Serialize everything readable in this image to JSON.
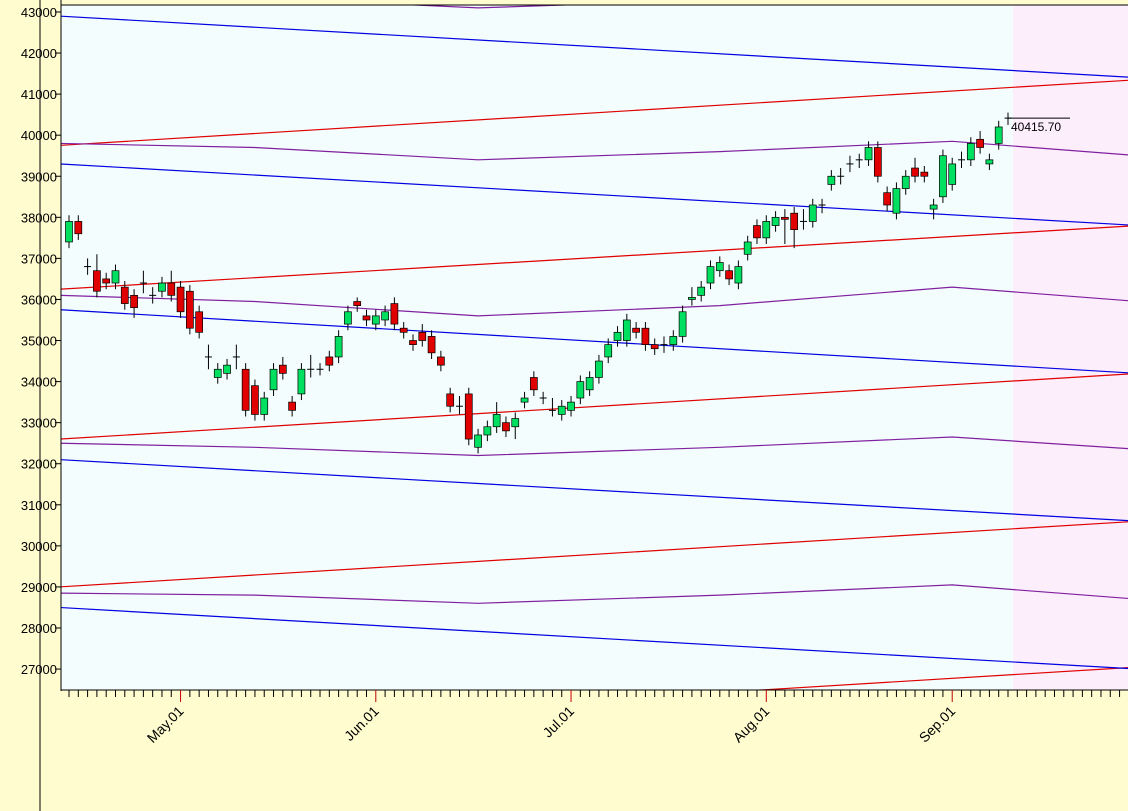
{
  "chart_data": {
    "type": "candlestick",
    "categories": [
      null,
      null,
      null,
      null,
      null,
      null,
      null,
      null,
      null,
      null,
      null,
      null,
      "May.01",
      null,
      null,
      null,
      null,
      null,
      null,
      null,
      null,
      null,
      null,
      null,
      null,
      null,
      null,
      null,
      null,
      null,
      null,
      null,
      null,
      "Jun.01",
      null,
      null,
      null,
      null,
      null,
      null,
      null,
      null,
      null,
      null,
      null,
      null,
      null,
      null,
      null,
      null,
      null,
      null,
      null,
      null,
      "Jul.01",
      null,
      null,
      null,
      null,
      null,
      null,
      null,
      null,
      null,
      null,
      null,
      null,
      null,
      null,
      null,
      null,
      null,
      null,
      null,
      null,
      "Aug.01",
      null,
      null,
      null,
      null,
      null,
      null,
      null,
      null,
      null,
      null,
      null,
      null,
      null,
      null,
      null,
      null,
      null,
      null,
      null,
      "Sep.01",
      null,
      null,
      null,
      null,
      null,
      null
    ],
    "open": [
      37400,
      37900,
      36800,
      36700,
      36500,
      36400,
      36300,
      36100,
      36400,
      36100,
      36200,
      36400,
      36300,
      36200,
      35700,
      34600,
      34100,
      34200,
      34600,
      34300,
      33900,
      33200,
      33800,
      34400,
      33500,
      33700,
      34300,
      34300,
      34600,
      34600,
      35400,
      35950,
      35600,
      35400,
      35500,
      35900,
      35300,
      35000,
      35200,
      35100,
      34600,
      33700,
      33400,
      33700,
      32400,
      32700,
      32900,
      33000,
      32900,
      33500,
      34100,
      33600,
      33300,
      33200,
      33300,
      33600,
      33800,
      34100,
      34600,
      35000,
      35000,
      35300,
      35300,
      34900,
      34900,
      34900,
      35100,
      36000,
      36100,
      36400,
      36700,
      36700,
      36400,
      37100,
      37800,
      37500,
      37800,
      38000,
      38100,
      37900,
      37900,
      38300,
      38800,
      39000,
      39300,
      39400,
      39400,
      39700,
      38600,
      38100,
      38700,
      39200,
      39100,
      38200,
      38500,
      38800,
      39400,
      39400,
      39900,
      39300,
      39800,
      40415.7
    ],
    "high": [
      38050,
      38050,
      37000,
      37100,
      36650,
      36850,
      36450,
      36250,
      36700,
      36300,
      36550,
      36700,
      36450,
      36350,
      35850,
      34900,
      34450,
      34550,
      34900,
      34450,
      34050,
      33750,
      34450,
      34600,
      33650,
      34450,
      34650,
      34450,
      34750,
      35250,
      35850,
      36050,
      35750,
      35750,
      35850,
      36050,
      35450,
      35150,
      35400,
      35250,
      34750,
      33850,
      33650,
      33850,
      32850,
      33050,
      33500,
      33150,
      33250,
      33750,
      34250,
      33750,
      33600,
      33550,
      33650,
      34150,
      34250,
      34650,
      35050,
      35350,
      35650,
      35450,
      35450,
      35050,
      35100,
      35250,
      35850,
      36300,
      36450,
      36950,
      37050,
      36850,
      36950,
      37550,
      37950,
      38050,
      38150,
      38200,
      38250,
      38200,
      38450,
      38450,
      39150,
      39200,
      39500,
      39550,
      39850,
      39850,
      38750,
      38850,
      39150,
      39450,
      39250,
      38450,
      39650,
      39450,
      39600,
      39950,
      40100,
      39550,
      40350,
      40550
    ],
    "low": [
      37250,
      37450,
      36600,
      36050,
      36250,
      36250,
      35750,
      35550,
      36150,
      35900,
      36050,
      35950,
      35550,
      35150,
      35050,
      34300,
      33950,
      34050,
      34300,
      33150,
      33050,
      33050,
      33650,
      34050,
      33150,
      33550,
      34100,
      34150,
      34250,
      34450,
      35250,
      35700,
      35350,
      35250,
      35350,
      35250,
      35050,
      34750,
      34850,
      34550,
      34250,
      33250,
      33200,
      32450,
      32250,
      32550,
      32750,
      32650,
      32600,
      33350,
      33650,
      33450,
      33150,
      33050,
      33150,
      33450,
      33650,
      33950,
      34450,
      34850,
      34850,
      35050,
      34750,
      34650,
      34700,
      34750,
      34950,
      35850,
      35950,
      36250,
      36550,
      36350,
      36250,
      36950,
      37350,
      37350,
      37650,
      37350,
      37250,
      37700,
      37750,
      38100,
      38650,
      38800,
      39100,
      39200,
      39250,
      38850,
      38150,
      37950,
      38550,
      38850,
      38850,
      37950,
      38350,
      38650,
      39200,
      39250,
      39550,
      39150,
      39650,
      40250
    ],
    "close": [
      37900,
      37600,
      36800,
      36200,
      36400,
      36700,
      35900,
      35800,
      36400,
      36100,
      36400,
      36100,
      35700,
      35300,
      35200,
      34600,
      34300,
      34400,
      34600,
      33300,
      33200,
      33600,
      34300,
      34200,
      33300,
      34300,
      34300,
      34300,
      34400,
      35100,
      35700,
      35850,
      35500,
      35600,
      35700,
      35400,
      35200,
      34900,
      35000,
      34700,
      34400,
      33400,
      33400,
      32600,
      32700,
      32900,
      33200,
      32800,
      33100,
      33600,
      33800,
      33600,
      33300,
      33400,
      33500,
      34000,
      34100,
      34500,
      34900,
      35200,
      35500,
      35200,
      34900,
      34800,
      34900,
      35100,
      35700,
      36050,
      36300,
      36800,
      36900,
      36500,
      36800,
      37400,
      37500,
      37900,
      38000,
      37950,
      37700,
      37900,
      38300,
      38300,
      39000,
      39000,
      39300,
      39400,
      39700,
      39000,
      38300,
      38700,
      39000,
      39000,
      39000,
      38300,
      39500,
      39300,
      39400,
      39800,
      39700,
      39400,
      40200,
      40415.7
    ],
    "up_color": "#00e060",
    "down_color": "#e00000",
    "last_price": {
      "value": 40415.7,
      "label": "40415.70"
    },
    "overlays": [
      {
        "color": "#e00000",
        "x": [
          -1,
          115
        ],
        "values": [
          39750,
          41350
        ]
      },
      {
        "color": "#e00000",
        "x": [
          -1,
          115
        ],
        "values": [
          36250,
          37800
        ]
      },
      {
        "color": "#e00000",
        "x": [
          -1,
          115
        ],
        "values": [
          32600,
          34200
        ]
      },
      {
        "color": "#e00000",
        "x": [
          -1,
          115
        ],
        "values": [
          29000,
          30600
        ]
      },
      {
        "color": "#e00000",
        "x": [
          -1,
          115
        ],
        "values": [
          25450,
          27050
        ]
      },
      {
        "color": "#0000e0",
        "x": [
          -1,
          115
        ],
        "values": [
          42900,
          41400
        ]
      },
      {
        "color": "#0000e0",
        "x": [
          -1,
          115
        ],
        "values": [
          39300,
          37800
        ]
      },
      {
        "color": "#0000e0",
        "x": [
          -1,
          115
        ],
        "values": [
          35750,
          34200
        ]
      },
      {
        "color": "#0000e0",
        "x": [
          -1,
          115
        ],
        "values": [
          32100,
          30600
        ]
      },
      {
        "color": "#0000e0",
        "x": [
          -1,
          115
        ],
        "values": [
          28500,
          27000
        ]
      },
      {
        "color": "#8020a0",
        "x": [
          -1,
          20,
          44,
          70,
          95,
          115
        ],
        "values": [
          43500,
          43350,
          43100,
          43300,
          43550,
          43250
        ]
      },
      {
        "color": "#8020a0",
        "x": [
          -1,
          20,
          44,
          70,
          95,
          115
        ],
        "values": [
          39800,
          39700,
          39400,
          39600,
          39850,
          39500
        ]
      },
      {
        "color": "#8020a0",
        "x": [
          -1,
          20,
          44,
          70,
          95,
          115
        ],
        "values": [
          36100,
          35950,
          35600,
          35850,
          36300,
          35950
        ]
      },
      {
        "color": "#8020a0",
        "x": [
          -1,
          20,
          44,
          70,
          95,
          115
        ],
        "values": [
          32500,
          32400,
          32200,
          32400,
          32650,
          32350
        ]
      },
      {
        "color": "#8020a0",
        "x": [
          -1,
          20,
          44,
          70,
          95,
          115
        ],
        "values": [
          28850,
          28800,
          28600,
          28800,
          29050,
          28700
        ]
      }
    ],
    "ylim": [
      26490,
      43170
    ],
    "yticks": [
      27000,
      28000,
      29000,
      30000,
      31000,
      32000,
      33000,
      34000,
      35000,
      36000,
      37000,
      38000,
      39000,
      40000,
      41000,
      42000,
      43000
    ]
  }
}
